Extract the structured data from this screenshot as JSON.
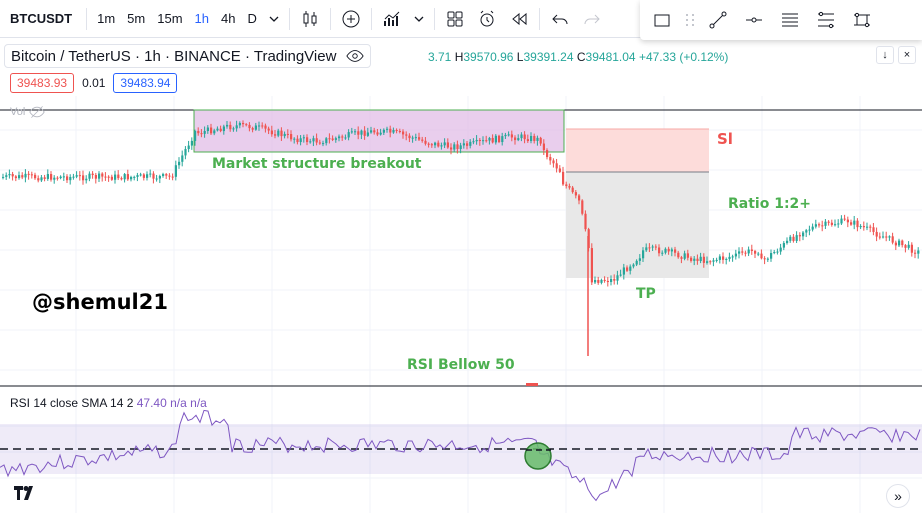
{
  "toolbar": {
    "symbol": "BTCUSDT",
    "timeframes": [
      {
        "label": "1m",
        "active": false
      },
      {
        "label": "5m",
        "active": false
      },
      {
        "label": "15m",
        "active": false
      },
      {
        "label": "1h",
        "active": true
      },
      {
        "label": "4h",
        "active": false
      },
      {
        "label": "D",
        "active": false
      }
    ],
    "icons": [
      "chevron-down-icon",
      "candles-icon",
      "add-indicator-icon",
      "bar-chart-icon",
      "layouts-icon",
      "alert-icon",
      "replay-icon",
      "undo-icon",
      "redo-icon"
    ]
  },
  "drawing_tools": [
    "rectangle-icon",
    "trend-line-icon",
    "horizontal-line-icon",
    "lines-icon",
    "fib-icon",
    "pattern-icon"
  ],
  "legend": {
    "title": "Bitcoin / TetherUS · 1h · BINANCE · TradingView",
    "ohlc_partial": "3.71",
    "high_label": "H",
    "high": "39570.96",
    "low_label": "L",
    "low": "39391.24",
    "close_label": "C",
    "close": "39481.04",
    "change": "+47.33 (+0.12%)"
  },
  "bid_ask": {
    "sell": "39483.93",
    "spread": "0.01",
    "buy": "39483.94"
  },
  "volume_label": "Vol",
  "annotations": {
    "breakout": "Market structure breakout",
    "sl": "Sl",
    "ratio": "Ratio 1:2+",
    "tp": "TP",
    "rsi_note": "RSI Bellow 50"
  },
  "watermark": "@shemul21",
  "rsi": {
    "label": "RSI 14 close SMA 14 2",
    "value": "47.40",
    "na1": "n/a",
    "na2": "n/a"
  },
  "logo": "17",
  "colors": {
    "up": "#26a69a",
    "down": "#ef5350",
    "rsi_line": "#7e57c2",
    "breakout_box": "#e1bee7",
    "sl_zone": "#fddcda",
    "tp_zone": "#e8e8e8",
    "annotation_green": "#4caf50",
    "accent": "#2962ff"
  }
}
